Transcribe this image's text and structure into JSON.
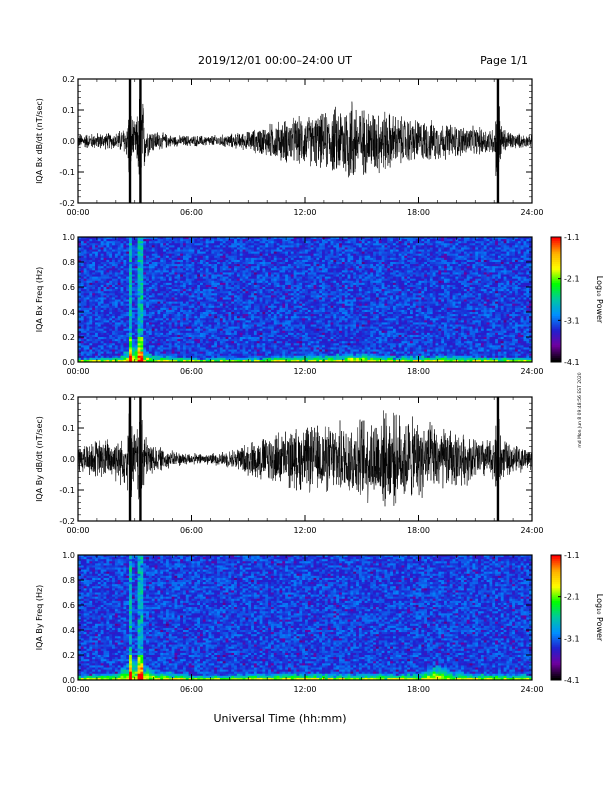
{
  "header": {
    "title": "2019/12/01  00:00–24:00 UT",
    "page": "Page 1/1"
  },
  "footer_xlabel": "Universal Time (hh:mm)",
  "side_note": "md Mon Jun 8 09:48:56 EST 2020",
  "x_ticks": [
    "00:00",
    "06:00",
    "12:00",
    "18:00",
    "24:00"
  ],
  "colorbar": {
    "label": "Log₁₀ Power",
    "ticks": [
      "-1.1",
      "-2.1",
      "-3.1",
      "-4.1"
    ],
    "colors": [
      "#ff0000",
      "#ffb000",
      "#ffff00",
      "#00ff00",
      "#00c8a0",
      "#0090ff",
      "#2020d0",
      "#7000a0",
      "#000000"
    ]
  },
  "chart_data": [
    {
      "type": "line",
      "name": "bx-timeseries",
      "ylabel": "IQA Bx dB/dt (nT/sec)",
      "xlim": [
        0,
        24
      ],
      "ylim": [
        -0.2,
        0.2
      ],
      "yticks": [
        "0.2",
        "0.1",
        "0.0",
        "-0.1",
        "-0.2"
      ],
      "yvals": [
        0.2,
        0.1,
        0.0,
        -0.1,
        -0.2
      ],
      "envelope": {
        "x": [
          0.0,
          1.0,
          2.0,
          2.6,
          2.75,
          2.9,
          3.1,
          3.3,
          3.6,
          4.0,
          5.0,
          6.0,
          7.0,
          8.0,
          9.0,
          10.0,
          11.0,
          12.0,
          13.0,
          14.0,
          14.5,
          15.0,
          16.0,
          17.0,
          18.0,
          19.0,
          20.0,
          21.0,
          22.0,
          22.2,
          22.4,
          23.0,
          24.0
        ],
        "amp": [
          0.025,
          0.03,
          0.03,
          0.06,
          0.22,
          0.06,
          0.08,
          0.22,
          0.06,
          0.04,
          0.02,
          0.02,
          0.02,
          0.025,
          0.035,
          0.06,
          0.08,
          0.09,
          0.1,
          0.14,
          0.17,
          0.12,
          0.12,
          0.09,
          0.08,
          0.07,
          0.06,
          0.05,
          0.05,
          0.22,
          0.05,
          0.03,
          0.02
        ]
      },
      "spikes": [
        2.75,
        3.3,
        22.2
      ]
    },
    {
      "type": "heatmap",
      "name": "bx-spectrogram",
      "ylabel": "IQA Bx Freq (Hz)",
      "xlim": [
        0,
        24
      ],
      "ylim": [
        0.0,
        1.0
      ],
      "yticks": [
        "1.0",
        "0.8",
        "0.6",
        "0.4",
        "0.2",
        "0.0"
      ],
      "yvals": [
        1.0,
        0.8,
        0.6,
        0.4,
        0.2,
        0.0
      ],
      "zlim": [
        -4.1,
        -1.1
      ],
      "bright_columns": [
        2.75,
        3.3
      ],
      "low_freq_band": {
        "x": [
          0,
          2,
          3,
          4,
          6,
          8,
          10,
          12,
          14,
          15,
          16,
          18,
          20,
          22,
          24
        ],
        "top": [
          0.03,
          0.04,
          0.14,
          0.06,
          0.03,
          0.03,
          0.04,
          0.05,
          0.06,
          0.07,
          0.05,
          0.05,
          0.05,
          0.04,
          0.03
        ]
      }
    },
    {
      "type": "line",
      "name": "by-timeseries",
      "ylabel": "IQA By dB/dt (nT/sec)",
      "xlim": [
        0,
        24
      ],
      "ylim": [
        -0.2,
        0.2
      ],
      "yticks": [
        "0.2",
        "0.1",
        "0.0",
        "-0.1",
        "-0.2"
      ],
      "yvals": [
        0.2,
        0.1,
        0.0,
        -0.1,
        -0.2
      ],
      "envelope": {
        "x": [
          0.0,
          1.0,
          2.0,
          2.6,
          2.75,
          2.9,
          3.1,
          3.3,
          3.6,
          4.0,
          5.0,
          6.0,
          7.0,
          8.0,
          9.0,
          10.0,
          11.0,
          12.0,
          13.0,
          14.0,
          15.0,
          16.0,
          17.0,
          18.0,
          19.0,
          20.0,
          21.0,
          22.0,
          22.2,
          22.4,
          23.0,
          24.0
        ],
        "amp": [
          0.05,
          0.07,
          0.08,
          0.1,
          0.22,
          0.1,
          0.11,
          0.22,
          0.08,
          0.05,
          0.03,
          0.02,
          0.02,
          0.03,
          0.06,
          0.09,
          0.1,
          0.12,
          0.12,
          0.13,
          0.15,
          0.17,
          0.16,
          0.14,
          0.12,
          0.1,
          0.08,
          0.07,
          0.22,
          0.07,
          0.05,
          0.04
        ]
      },
      "spikes": [
        2.75,
        3.3,
        22.2
      ]
    },
    {
      "type": "heatmap",
      "name": "by-spectrogram",
      "ylabel": "IQA By Freq (Hz)",
      "xlim": [
        0,
        24
      ],
      "ylim": [
        0.0,
        1.0
      ],
      "yticks": [
        "1.0",
        "0.8",
        "0.6",
        "0.4",
        "0.2",
        "0.0"
      ],
      "yvals": [
        1.0,
        0.8,
        0.6,
        0.4,
        0.2,
        0.0
      ],
      "zlim": [
        -4.1,
        -1.1
      ],
      "bright_columns": [
        2.75,
        3.3
      ],
      "low_freq_band": {
        "x": [
          0,
          2,
          3,
          4,
          6,
          8,
          10,
          12,
          14,
          16,
          18,
          19,
          20,
          22,
          24
        ],
        "top": [
          0.04,
          0.05,
          0.18,
          0.08,
          0.04,
          0.04,
          0.05,
          0.05,
          0.05,
          0.05,
          0.05,
          0.12,
          0.06,
          0.05,
          0.04
        ]
      }
    }
  ]
}
